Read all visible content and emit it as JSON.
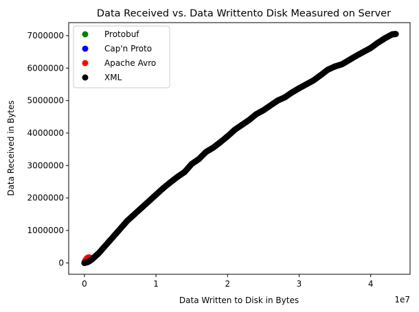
{
  "chart_data": {
    "type": "scatter",
    "title": "Data Received vs. Data Writtento Disk Measured on Server",
    "xlabel": "Data Written to Disk in Bytes",
    "ylabel": "Data Received in Bytes",
    "x_offset_label": "1e7",
    "xlim": [
      -2200000,
      45500000
    ],
    "ylim": [
      -350000,
      7400000
    ],
    "x_ticks": [
      {
        "value": 0,
        "label": "0"
      },
      {
        "value": 10000000,
        "label": "1"
      },
      {
        "value": 20000000,
        "label": "2"
      },
      {
        "value": 30000000,
        "label": "3"
      },
      {
        "value": 40000000,
        "label": "4"
      }
    ],
    "y_ticks": [
      {
        "value": 0,
        "label": "0"
      },
      {
        "value": 1000000,
        "label": "1000000"
      },
      {
        "value": 2000000,
        "label": "2000000"
      },
      {
        "value": 3000000,
        "label": "3000000"
      },
      {
        "value": 4000000,
        "label": "4000000"
      },
      {
        "value": 5000000,
        "label": "5000000"
      },
      {
        "value": 6000000,
        "label": "6000000"
      },
      {
        "value": 7000000,
        "label": "7000000"
      }
    ],
    "grid": false,
    "legend_position": "top-left",
    "series": [
      {
        "name": "Protobuf",
        "color": "#008000",
        "x": [
          0,
          150000,
          300000,
          500000,
          700000
        ],
        "y": [
          0,
          20000,
          45000,
          70000,
          95000
        ]
      },
      {
        "name": "Cap'n Proto",
        "color": "#0000ff",
        "x": [
          0,
          200000,
          400000,
          650000,
          900000
        ],
        "y": [
          0,
          25000,
          55000,
          85000,
          120000
        ]
      },
      {
        "name": "Apache Avro",
        "color": "#ff0000",
        "x": [
          0,
          100000,
          250000,
          400000,
          600000,
          800000
        ],
        "y": [
          0,
          60000,
          110000,
          150000,
          170000,
          160000
        ]
      },
      {
        "name": "XML",
        "color": "#000000",
        "x": [
          0,
          500000,
          1000000,
          1500000,
          2000000,
          3000000,
          4000000,
          5000000,
          6000000,
          7000000,
          8000000,
          9000000,
          10000000,
          11000000,
          12000000,
          13000000,
          14000000,
          15000000,
          16000000,
          17000000,
          18000000,
          19000000,
          20000000,
          21000000,
          22000000,
          23000000,
          24000000,
          25000000,
          26000000,
          27000000,
          28000000,
          29000000,
          30000000,
          31000000,
          32000000,
          33000000,
          34000000,
          35000000,
          36000000,
          37000000,
          38000000,
          39000000,
          40000000,
          41000000,
          42000000,
          43000000,
          43500000
        ],
        "y": [
          0,
          30000,
          100000,
          200000,
          300000,
          550000,
          800000,
          1050000,
          1300000,
          1500000,
          1700000,
          1900000,
          2100000,
          2300000,
          2480000,
          2650000,
          2800000,
          3050000,
          3200000,
          3420000,
          3550000,
          3720000,
          3900000,
          4100000,
          4250000,
          4400000,
          4580000,
          4700000,
          4850000,
          5000000,
          5100000,
          5250000,
          5380000,
          5500000,
          5620000,
          5780000,
          5950000,
          6050000,
          6120000,
          6250000,
          6380000,
          6500000,
          6620000,
          6780000,
          6920000,
          7040000,
          7050000
        ]
      }
    ]
  }
}
